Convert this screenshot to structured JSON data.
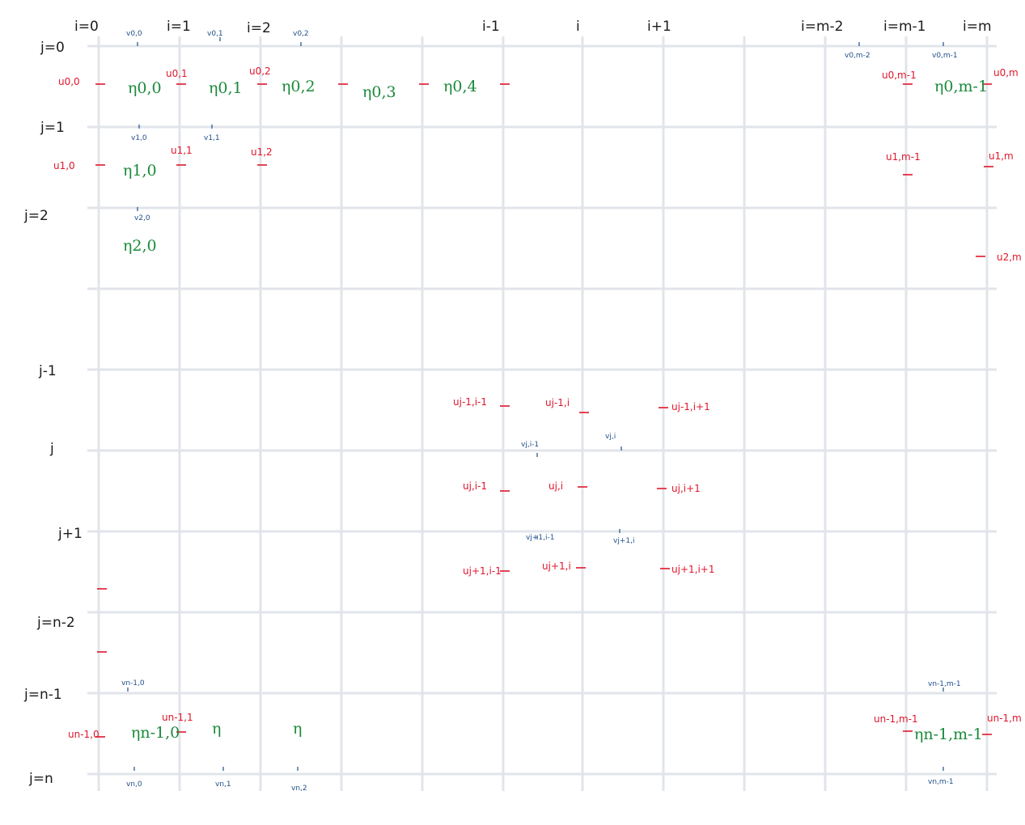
{
  "col_labels": [
    "i=0",
    "i=1",
    "i=2",
    "i-1",
    "i",
    "i+1",
    "i=m-2",
    "i=m-1",
    "i=m"
  ],
  "row_labels": [
    "j=0",
    "j=1",
    "j=2",
    "j-1",
    "j",
    "j+1",
    "j=n-2",
    "j=n-1",
    "j=n"
  ],
  "u_labels": [
    "u0,0",
    "u0,1",
    "u0,2",
    "u0,m-1",
    "u0,m",
    "u1,0",
    "u1,1",
    "u1,2",
    "u1,m-1",
    "u1,m",
    "u2,m",
    "uj-1,i-1",
    "uj-1,i",
    "uj-1,i+1",
    "uj,i-1",
    "uj,i",
    "uj,i+1",
    "uj+1,i-1",
    "uj+1,i",
    "uj+1,i+1",
    "un-1,0",
    "un-1,1",
    "un-1,m-1",
    "un-1,m"
  ],
  "v_labels": [
    "v0,0",
    "v0,1",
    "v0,2",
    "v0,m-2",
    "v0,m-1",
    "v1,0",
    "v1,1",
    "v2,0",
    "vj,i-1",
    "vj,i",
    "vj+1,i-1",
    "vj+1,i",
    "vn-1,0",
    "vn-1,m-1",
    "vn,0",
    "vn,1",
    "vn,2",
    "vn,m-1"
  ],
  "eta_labels": [
    "η0,0",
    "η0,1",
    "η0,2",
    "η0,3",
    "η0,4",
    "η0,m-1",
    "η1,0",
    "η2,0",
    "ηn-1,0",
    "η",
    "η",
    "ηn-1,m-1"
  ],
  "colors": {
    "grid": "#e1e4ea",
    "u": "#e0162b",
    "v": "#1f4e8c",
    "eta": "#1a8a3a",
    "axis": "#1b1b1b"
  }
}
